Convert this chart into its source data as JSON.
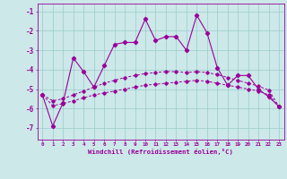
{
  "x": [
    0,
    1,
    2,
    3,
    4,
    5,
    6,
    7,
    8,
    9,
    10,
    11,
    12,
    13,
    14,
    15,
    16,
    17,
    18,
    19,
    20,
    21,
    22,
    23
  ],
  "line_main": [
    -5.3,
    -6.9,
    -5.7,
    -3.4,
    -4.1,
    -4.9,
    -3.8,
    -2.7,
    -2.6,
    -2.6,
    -1.4,
    -2.5,
    -2.3,
    -2.3,
    -3.0,
    -1.2,
    -2.1,
    -3.9,
    -4.8,
    -4.3,
    -4.3,
    -5.0,
    -5.4,
    -5.9
  ],
  "smooth_upper": [
    -5.3,
    -5.6,
    -5.5,
    -5.3,
    -5.1,
    -4.9,
    -4.7,
    -4.55,
    -4.4,
    -4.3,
    -4.2,
    -4.15,
    -4.1,
    -4.1,
    -4.15,
    -4.1,
    -4.15,
    -4.25,
    -4.4,
    -4.55,
    -4.7,
    -4.85,
    -5.05,
    -5.9
  ],
  "smooth_lower": [
    -5.3,
    -5.85,
    -5.75,
    -5.6,
    -5.45,
    -5.3,
    -5.2,
    -5.1,
    -5.0,
    -4.9,
    -4.8,
    -4.75,
    -4.7,
    -4.65,
    -4.6,
    -4.55,
    -4.6,
    -4.7,
    -4.8,
    -4.9,
    -5.0,
    -5.1,
    -5.3,
    -5.9
  ],
  "bg_color": "#cce8e8",
  "line_color": "#990099",
  "grid_color": "#99cccc",
  "yticks": [
    -1,
    -2,
    -3,
    -4,
    -5,
    -6,
    -7
  ],
  "xlabel": "Windchill (Refroidissement éolien,°C)"
}
